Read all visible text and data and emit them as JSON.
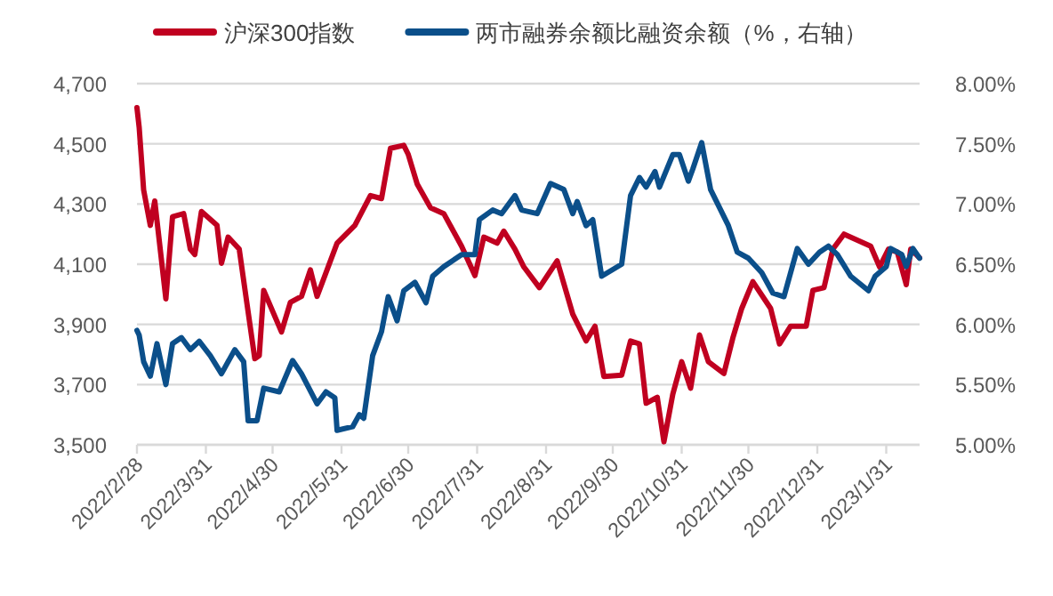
{
  "chart_data": {
    "type": "line",
    "legend": "top",
    "grid": "y",
    "line_style": "solid",
    "marker": "none",
    "xlim": [
      "2022-02-28",
      "2023-02-15"
    ],
    "xticks": [
      {
        "value": "2022-02-28",
        "label": "2022/2/28"
      },
      {
        "value": "2022-03-31",
        "label": "2022/3/31"
      },
      {
        "value": "2022-04-30",
        "label": "2022/4/30"
      },
      {
        "value": "2022-05-31",
        "label": "2022/5/31"
      },
      {
        "value": "2022-06-30",
        "label": "2022/6/30"
      },
      {
        "value": "2022-07-31",
        "label": "2022/7/31"
      },
      {
        "value": "2022-08-31",
        "label": "2022/8/31"
      },
      {
        "value": "2022-09-30",
        "label": "2022/9/30"
      },
      {
        "value": "2022-10-31",
        "label": "2022/10/31"
      },
      {
        "value": "2022-11-30",
        "label": "2022/11/30"
      },
      {
        "value": "2022-12-31",
        "label": "2022/12/31"
      },
      {
        "value": "2023-01-31",
        "label": "2023/1/31"
      }
    ],
    "ylim": [
      3500,
      4700
    ],
    "yticks": [
      {
        "value": 3500,
        "label": "3,500"
      },
      {
        "value": 3700,
        "label": "3,700"
      },
      {
        "value": 3900,
        "label": "3,900"
      },
      {
        "value": 4100,
        "label": "4,100"
      },
      {
        "value": 4300,
        "label": "4,300"
      },
      {
        "value": 4500,
        "label": "4,500"
      },
      {
        "value": 4700,
        "label": "4,700"
      }
    ],
    "y2lim": [
      5,
      8
    ],
    "y2ticks": [
      {
        "value": 5,
        "label": "5.00%"
      },
      {
        "value": 5.5,
        "label": "5.50%"
      },
      {
        "value": 6,
        "label": "6.00%"
      },
      {
        "value": 6.5,
        "label": "6.50%"
      },
      {
        "value": 7,
        "label": "7.00%"
      },
      {
        "value": 7.5,
        "label": "7.50%"
      },
      {
        "value": 8,
        "label": "8.00%"
      }
    ],
    "series": [
      {
        "name": "沪深300指数",
        "color": "#c00020",
        "x": [
          "2022-02-28",
          "2022-03-01",
          "2022-03-03",
          "2022-03-06",
          "2022-03-08",
          "2022-03-13",
          "2022-03-16",
          "2022-03-21",
          "2022-03-24",
          "2022-03-26",
          "2022-03-29",
          "2022-04-05",
          "2022-04-07",
          "2022-04-10",
          "2022-04-15",
          "2022-04-18",
          "2022-04-22",
          "2022-04-24",
          "2022-04-26",
          "2022-05-04",
          "2022-05-08",
          "2022-05-13",
          "2022-05-17",
          "2022-05-20",
          "2022-05-29",
          "2022-06-06",
          "2022-06-13",
          "2022-06-18",
          "2022-06-22",
          "2022-06-28",
          "2022-06-30",
          "2022-07-04",
          "2022-07-10",
          "2022-07-16",
          "2022-07-24",
          "2022-07-30",
          "2022-08-03",
          "2022-08-09",
          "2022-08-12",
          "2022-08-17",
          "2022-08-21",
          "2022-08-28",
          "2022-09-05",
          "2022-09-12",
          "2022-09-18",
          "2022-09-22",
          "2022-09-26",
          "2022-10-04",
          "2022-10-08",
          "2022-10-12",
          "2022-10-15",
          "2022-10-20",
          "2022-10-23",
          "2022-10-27",
          "2022-10-31",
          "2022-11-04",
          "2022-11-08",
          "2022-11-12",
          "2022-11-19",
          "2022-11-23",
          "2022-11-27",
          "2022-12-02",
          "2022-12-10",
          "2022-12-14",
          "2022-12-19",
          "2022-12-26",
          "2022-12-29",
          "2023-01-03",
          "2023-01-07",
          "2023-01-12",
          "2023-01-24",
          "2023-01-28",
          "2023-02-01",
          "2023-02-05",
          "2023-02-09",
          "2023-02-11",
          "2023-02-15"
        ],
        "values": [
          4620,
          4554,
          4347,
          4229,
          4310,
          3985,
          4258,
          4268,
          4150,
          4132,
          4275,
          4229,
          4103,
          4190,
          4150,
          3993,
          3786,
          3796,
          4013,
          3875,
          3973,
          3993,
          4081,
          3993,
          4170,
          4229,
          4328,
          4318,
          4485,
          4495,
          4465,
          4367,
          4288,
          4268,
          4160,
          4062,
          4190,
          4170,
          4210,
          4150,
          4091,
          4022,
          4111,
          3934,
          3845,
          3894,
          3727,
          3731,
          3845,
          3835,
          3638,
          3658,
          3510,
          3668,
          3776,
          3688,
          3865,
          3776,
          3737,
          3855,
          3953,
          4042,
          3953,
          3835,
          3894,
          3894,
          4013,
          4022,
          4150,
          4200,
          4160,
          4091,
          4150,
          4140,
          4032,
          4150,
          4121
        ]
      },
      {
        "name": "两市融券余额比融资余额（%，右轴）",
        "color": "#0b4f8a",
        "axis": "y2",
        "x": [
          "2022-02-28",
          "2022-03-01",
          "2022-03-03",
          "2022-03-06",
          "2022-03-09",
          "2022-03-13",
          "2022-03-16",
          "2022-03-20",
          "2022-03-24",
          "2022-03-28",
          "2022-04-02",
          "2022-04-07",
          "2022-04-13",
          "2022-04-17",
          "2022-04-19",
          "2022-04-23",
          "2022-04-26",
          "2022-05-03",
          "2022-05-09",
          "2022-05-13",
          "2022-05-20",
          "2022-05-24",
          "2022-05-28",
          "2022-05-29",
          "2022-06-05",
          "2022-06-08",
          "2022-06-10",
          "2022-06-14",
          "2022-06-18",
          "2022-06-21",
          "2022-06-25",
          "2022-06-28",
          "2022-07-03",
          "2022-07-08",
          "2022-07-11",
          "2022-07-16",
          "2022-07-24",
          "2022-07-30",
          "2022-08-01",
          "2022-08-07",
          "2022-08-11",
          "2022-08-17",
          "2022-08-20",
          "2022-08-27",
          "2022-09-02",
          "2022-09-08",
          "2022-09-12",
          "2022-09-14",
          "2022-09-18",
          "2022-09-21",
          "2022-09-25",
          "2022-10-04",
          "2022-10-08",
          "2022-10-12",
          "2022-10-15",
          "2022-10-19",
          "2022-10-21",
          "2022-10-27",
          "2022-10-30",
          "2022-11-03",
          "2022-11-05",
          "2022-11-09",
          "2022-11-13",
          "2022-11-17",
          "2022-11-21",
          "2022-11-25",
          "2022-11-30",
          "2022-12-06",
          "2022-12-11",
          "2022-12-16",
          "2022-12-22",
          "2022-12-27",
          "2023-01-01",
          "2023-01-05",
          "2023-01-09",
          "2023-01-15",
          "2023-01-23",
          "2023-01-26",
          "2023-01-31",
          "2023-02-02",
          "2023-02-07",
          "2023-02-09",
          "2023-02-12",
          "2023-02-15"
        ],
        "values": [
          5.95,
          5.91,
          5.69,
          5.57,
          5.84,
          5.5,
          5.84,
          5.89,
          5.79,
          5.86,
          5.74,
          5.59,
          5.79,
          5.69,
          5.2,
          5.2,
          5.47,
          5.44,
          5.7,
          5.59,
          5.34,
          5.44,
          5.39,
          5.12,
          5.15,
          5.25,
          5.22,
          5.74,
          5.94,
          6.23,
          6.03,
          6.28,
          6.35,
          6.18,
          6.4,
          6.48,
          6.58,
          6.58,
          6.87,
          6.95,
          6.92,
          7.07,
          6.95,
          6.92,
          7.17,
          7.12,
          6.92,
          7.02,
          6.82,
          6.87,
          6.4,
          6.5,
          7.07,
          7.22,
          7.14,
          7.27,
          7.14,
          7.41,
          7.41,
          7.19,
          7.29,
          7.51,
          7.12,
          6.97,
          6.82,
          6.6,
          6.55,
          6.43,
          6.26,
          6.23,
          6.63,
          6.5,
          6.6,
          6.65,
          6.58,
          6.4,
          6.28,
          6.4,
          6.48,
          6.63,
          6.58,
          6.48,
          6.63,
          6.55
        ]
      }
    ]
  }
}
